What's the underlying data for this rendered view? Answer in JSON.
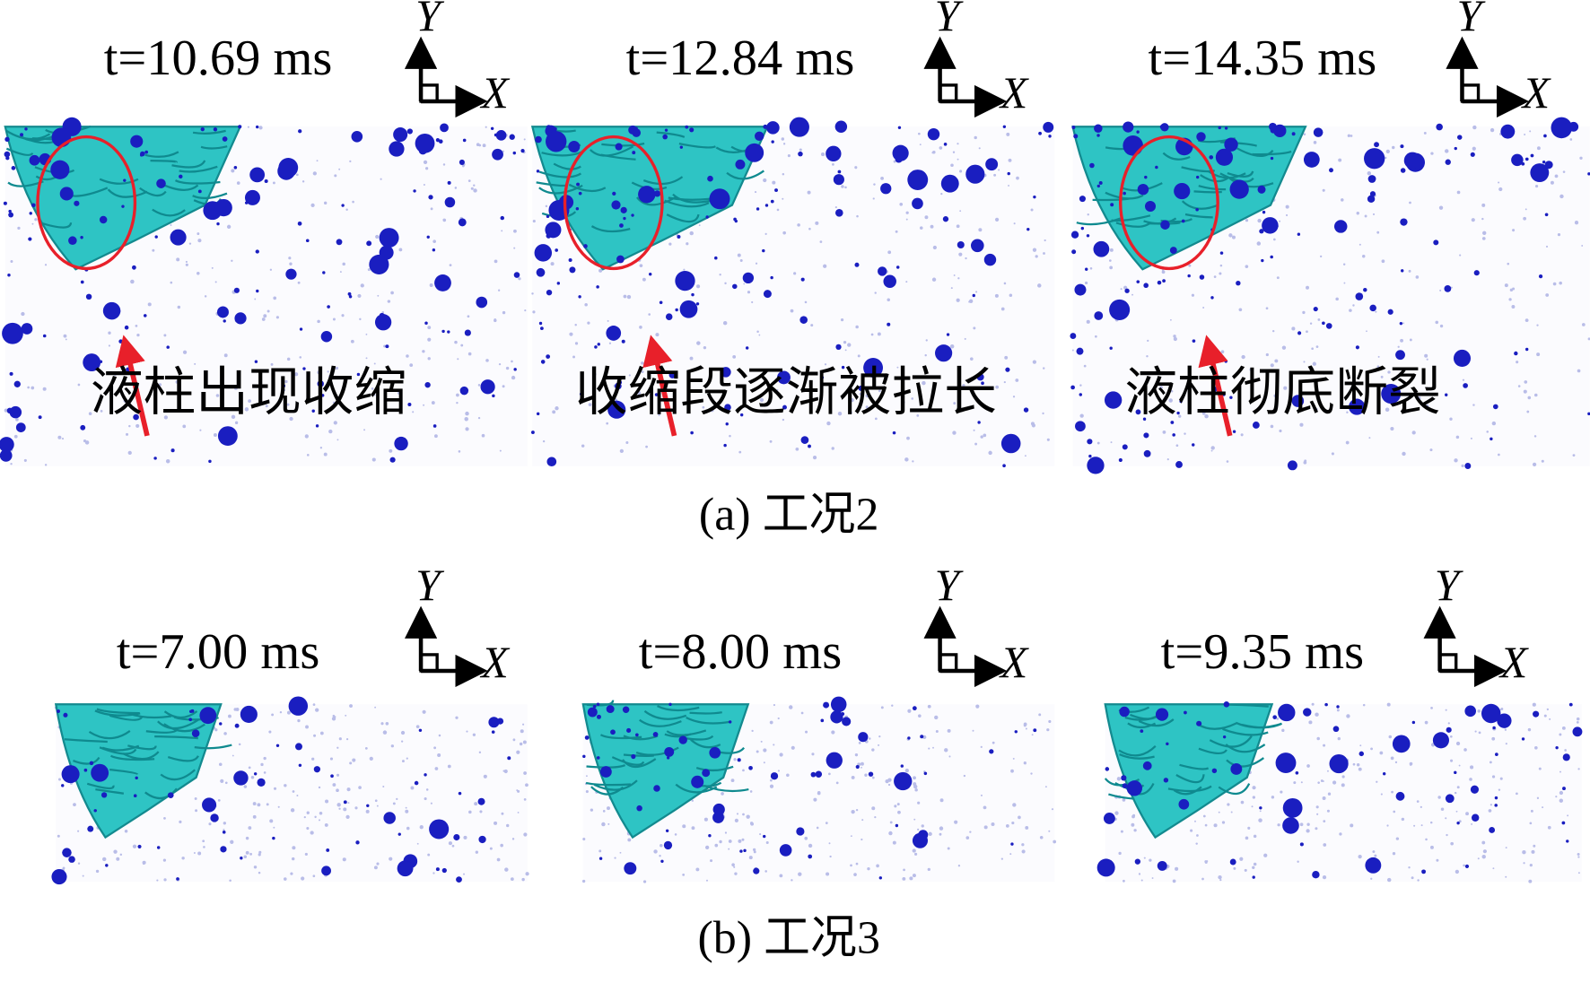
{
  "axis_labels": {
    "x": "X",
    "y": "Y"
  },
  "panels": [
    {
      "caption": "(a) 工况2",
      "frames": [
        {
          "time": "t=10.69 ms",
          "annotation": "液柱出现收缩"
        },
        {
          "time": "t=12.84 ms",
          "annotation": "收缩段逐渐被拉长"
        },
        {
          "time": "t=14.35 ms",
          "annotation": "液柱彻底断裂"
        }
      ]
    },
    {
      "caption": "(b) 工况3",
      "frames": [
        {
          "time": "t=7.00 ms"
        },
        {
          "time": "t=8.00 ms"
        },
        {
          "time": "t=9.35 ms"
        }
      ]
    }
  ]
}
